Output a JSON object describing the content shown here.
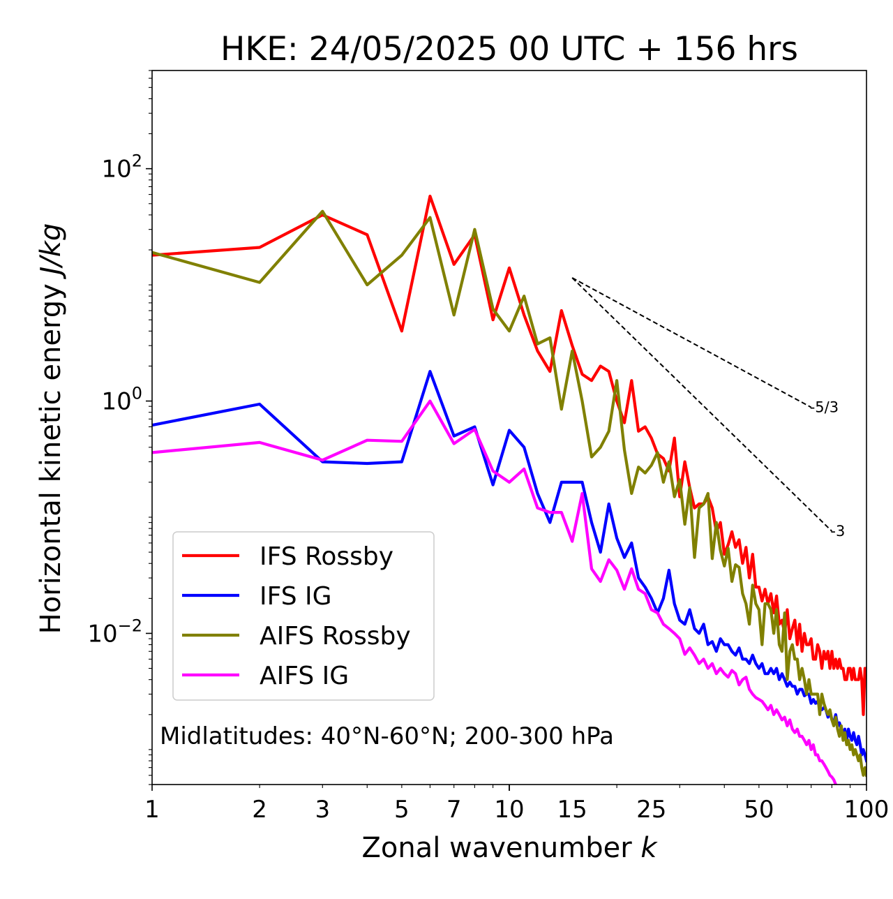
{
  "chart_data": {
    "type": "line",
    "title": "HKE: 24/05/2025 00 UTC + 156 hrs",
    "xlabel_prefix": "Zonal wavenumber ",
    "xlabel_var": "k",
    "ylabel_prefix": "Horizontal kinetic energy ",
    "ylabel_unit": "J/kg",
    "x_scale": "log",
    "y_scale": "log",
    "xlim": [
      1,
      100
    ],
    "ylim": [
      0.0005,
      700
    ],
    "x_ticks": [
      {
        "value": 1,
        "label": "1"
      },
      {
        "value": 2,
        "label": "2"
      },
      {
        "value": 3,
        "label": "3"
      },
      {
        "value": 5,
        "label": "5"
      },
      {
        "value": 7,
        "label": "7"
      },
      {
        "value": 10,
        "label": "10"
      },
      {
        "value": 15,
        "label": "15"
      },
      {
        "value": 25,
        "label": "25"
      },
      {
        "value": 50,
        "label": "50"
      },
      {
        "value": 100,
        "label": "100"
      }
    ],
    "y_ticks": [
      {
        "value": 100,
        "base": "10",
        "exp": "2"
      },
      {
        "value": 1,
        "base": "10",
        "exp": "0"
      },
      {
        "value": 0.01,
        "base": "10",
        "exp": "−2"
      }
    ],
    "grid": false,
    "legend_position": "lower-left",
    "annotation": "Midlatitudes: 40°N-60°N; 200-300 hPa",
    "reference_slopes": [
      {
        "label": "-5/3",
        "slope": -1.6667,
        "x": [
          15,
          70
        ],
        "y0": 11.5
      },
      {
        "label": "-3",
        "slope": -3,
        "x": [
          15,
          80
        ],
        "y0": 11.5
      }
    ],
    "series": [
      {
        "name": "IFS Rossby",
        "color": "#ff0000",
        "x": [
          1,
          2,
          3,
          4,
          5,
          6,
          7,
          8,
          9,
          10,
          11,
          12,
          13,
          14,
          15,
          16,
          17,
          18,
          19,
          20,
          21,
          22,
          23,
          24,
          25,
          26,
          27,
          28,
          29,
          30,
          31,
          32,
          33,
          34,
          35,
          36,
          37,
          38,
          39,
          40,
          41,
          42,
          43,
          44,
          45,
          46,
          47,
          48,
          49,
          50,
          51,
          52,
          53,
          54,
          55,
          56,
          57,
          58,
          59,
          60,
          61,
          62,
          63,
          64,
          65,
          66,
          67,
          68,
          69,
          70,
          71,
          72,
          73,
          74,
          75,
          76,
          77,
          78,
          79,
          80,
          81,
          82,
          83,
          84,
          85,
          86,
          87,
          88,
          89,
          90,
          91,
          92,
          93,
          94,
          95,
          96,
          97,
          98,
          99,
          100
        ],
        "y": [
          18,
          21,
          40,
          27,
          4.0,
          58,
          15,
          27,
          5.0,
          14,
          5.5,
          2.7,
          1.8,
          6.0,
          3.0,
          1.7,
          1.5,
          2.0,
          1.8,
          1.0,
          0.65,
          1.5,
          0.55,
          0.6,
          0.48,
          0.35,
          0.32,
          0.25,
          0.48,
          0.15,
          0.3,
          0.18,
          0.12,
          0.13,
          0.13,
          0.15,
          0.12,
          0.075,
          0.09,
          0.048,
          0.058,
          0.075,
          0.055,
          0.064,
          0.04,
          0.055,
          0.03,
          0.048,
          0.025,
          0.025,
          0.019,
          0.024,
          0.018,
          0.022,
          0.015,
          0.021,
          0.012,
          0.013,
          0.01,
          0.016,
          0.009,
          0.011,
          0.013,
          0.008,
          0.012,
          0.007,
          0.01,
          0.008,
          0.008,
          0.009,
          0.006,
          0.006,
          0.008,
          0.007,
          0.005,
          0.007,
          0.006,
          0.007,
          0.005,
          0.007,
          0.005,
          0.006,
          0.005,
          0.006,
          0.005,
          0.005,
          0.004,
          0.004,
          0.005,
          0.005,
          0.004,
          0.005,
          0.004,
          0.004,
          0.004,
          0.005,
          0.004,
          0.002,
          0.005,
          0.005
        ]
      },
      {
        "name": "IFS IG",
        "color": "#0000ff",
        "x": [
          1,
          2,
          3,
          4,
          5,
          6,
          7,
          8,
          9,
          10,
          11,
          12,
          13,
          14,
          15,
          16,
          17,
          18,
          19,
          20,
          21,
          22,
          23,
          24,
          25,
          26,
          27,
          28,
          29,
          30,
          31,
          32,
          33,
          34,
          35,
          36,
          37,
          38,
          39,
          40,
          41,
          42,
          43,
          44,
          45,
          46,
          47,
          48,
          49,
          50,
          51,
          52,
          53,
          54,
          55,
          56,
          57,
          58,
          59,
          60,
          61,
          62,
          63,
          64,
          65,
          66,
          67,
          68,
          69,
          70,
          71,
          72,
          73,
          74,
          75,
          76,
          77,
          78,
          79,
          80,
          81,
          82,
          83,
          84,
          85,
          86,
          87,
          88,
          89,
          90,
          91,
          92,
          93,
          94,
          95,
          96,
          97,
          98,
          99,
          100
        ],
        "y": [
          0.62,
          0.94,
          0.3,
          0.29,
          0.3,
          1.8,
          0.5,
          0.6,
          0.19,
          0.56,
          0.4,
          0.16,
          0.09,
          0.2,
          0.2,
          0.2,
          0.09,
          0.05,
          0.13,
          0.066,
          0.045,
          0.06,
          0.03,
          0.025,
          0.02,
          0.015,
          0.02,
          0.035,
          0.018,
          0.013,
          0.012,
          0.016,
          0.011,
          0.01,
          0.012,
          0.008,
          0.0085,
          0.007,
          0.009,
          0.008,
          0.008,
          0.007,
          0.0065,
          0.0075,
          0.006,
          0.006,
          0.0055,
          0.0065,
          0.0055,
          0.005,
          0.0055,
          0.0045,
          0.0045,
          0.005,
          0.0045,
          0.005,
          0.004,
          0.0045,
          0.004,
          0.0035,
          0.0038,
          0.0035,
          0.0035,
          0.003,
          0.0033,
          0.0033,
          0.0029,
          0.003,
          0.003,
          0.0025,
          0.0027,
          0.0025,
          0.0026,
          0.0023,
          0.0022,
          0.0023,
          0.0022,
          0.0019,
          0.0021,
          0.0018,
          0.0017,
          0.002,
          0.0016,
          0.0017,
          0.0015,
          0.0014,
          0.0015,
          0.0012,
          0.0015,
          0.0013,
          0.0012,
          0.0014,
          0.0012,
          0.0011,
          0.0013,
          0.0011,
          0.0009,
          0.001,
          0.0009,
          0.0008
        ]
      },
      {
        "name": "AIFS Rossby",
        "color": "#808000",
        "x": [
          1,
          2,
          3,
          4,
          5,
          6,
          7,
          8,
          9,
          10,
          11,
          12,
          13,
          14,
          15,
          16,
          17,
          18,
          19,
          20,
          21,
          22,
          23,
          24,
          25,
          26,
          27,
          28,
          29,
          30,
          31,
          32,
          33,
          34,
          35,
          36,
          37,
          38,
          39,
          40,
          41,
          42,
          43,
          44,
          45,
          46,
          47,
          48,
          49,
          50,
          51,
          52,
          53,
          54,
          55,
          56,
          57,
          58,
          59,
          60,
          61,
          62,
          63,
          64,
          65,
          66,
          67,
          68,
          69,
          70,
          71,
          72,
          73,
          74,
          75,
          76,
          77,
          78,
          79,
          80,
          81,
          82,
          83,
          84,
          85,
          86,
          87,
          88,
          89,
          90,
          91,
          92,
          93,
          94,
          95,
          96,
          97,
          98,
          99,
          100
        ],
        "y": [
          19,
          10.5,
          43,
          10,
          18,
          38,
          5.5,
          30,
          6.2,
          4.0,
          8.0,
          3.1,
          3.5,
          0.85,
          2.7,
          1.0,
          0.33,
          0.4,
          0.55,
          1.5,
          0.38,
          0.16,
          0.27,
          0.24,
          0.28,
          0.36,
          0.2,
          0.3,
          0.15,
          0.21,
          0.087,
          0.18,
          0.045,
          0.12,
          0.13,
          0.16,
          0.044,
          0.09,
          0.052,
          0.038,
          0.054,
          0.028,
          0.039,
          0.037,
          0.022,
          0.018,
          0.012,
          0.026,
          0.018,
          0.016,
          0.008,
          0.018,
          0.018,
          0.016,
          0.01,
          0.016,
          0.008,
          0.007,
          0.015,
          0.004,
          0.007,
          0.008,
          0.006,
          0.006,
          0.004,
          0.005,
          0.004,
          0.003,
          0.004,
          0.003,
          0.003,
          0.003,
          0.003,
          0.002,
          0.003,
          0.0025,
          0.0022,
          0.002,
          0.0022,
          0.0018,
          0.0016,
          0.0019,
          0.0015,
          0.0013,
          0.0016,
          0.0012,
          0.0014,
          0.0011,
          0.0012,
          0.001,
          0.0011,
          0.0009,
          0.001,
          0.0009,
          0.0008,
          0.0009,
          0.0007,
          0.0006,
          0.0007,
          0.0006
        ]
      },
      {
        "name": "AIFS IG",
        "color": "#ff00ff",
        "x": [
          1,
          2,
          3,
          4,
          5,
          6,
          7,
          8,
          9,
          10,
          11,
          12,
          13,
          14,
          15,
          16,
          17,
          18,
          19,
          20,
          21,
          22,
          23,
          24,
          25,
          26,
          27,
          28,
          29,
          30,
          31,
          32,
          33,
          34,
          35,
          36,
          37,
          38,
          39,
          40,
          41,
          42,
          43,
          44,
          45,
          46,
          47,
          48,
          49,
          50,
          51,
          52,
          53,
          54,
          55,
          56,
          57,
          58,
          59,
          60,
          61,
          62,
          63,
          64,
          65,
          66,
          67,
          68,
          69,
          70,
          71,
          72,
          73,
          74,
          75,
          76,
          77,
          78,
          79,
          80,
          81,
          82,
          83,
          84,
          85,
          86,
          87,
          88,
          89,
          90
        ],
        "y": [
          0.36,
          0.44,
          0.31,
          0.46,
          0.45,
          1.0,
          0.43,
          0.57,
          0.25,
          0.2,
          0.26,
          0.12,
          0.11,
          0.11,
          0.062,
          0.16,
          0.036,
          0.028,
          0.043,
          0.035,
          0.024,
          0.036,
          0.024,
          0.022,
          0.016,
          0.015,
          0.012,
          0.011,
          0.01,
          0.009,
          0.0066,
          0.0075,
          0.0065,
          0.0055,
          0.006,
          0.005,
          0.0055,
          0.0045,
          0.005,
          0.0045,
          0.0042,
          0.0048,
          0.0045,
          0.0036,
          0.004,
          0.0042,
          0.0033,
          0.003,
          0.0028,
          0.0027,
          0.0026,
          0.0024,
          0.0022,
          0.0024,
          0.002,
          0.0022,
          0.002,
          0.0018,
          0.0019,
          0.0016,
          0.0018,
          0.0015,
          0.0014,
          0.0015,
          0.0013,
          0.0013,
          0.0012,
          0.0011,
          0.0012,
          0.001,
          0.0011,
          0.0009,
          0.0009,
          0.0008,
          0.0008,
          0.00075,
          0.0007,
          0.00065,
          0.0006,
          0.00058,
          0.00055,
          0.0005,
          0.00048,
          0.00045,
          0.0004,
          0.00042,
          0.00038,
          0.00035,
          0.0003,
          0.00035
        ]
      }
    ]
  }
}
